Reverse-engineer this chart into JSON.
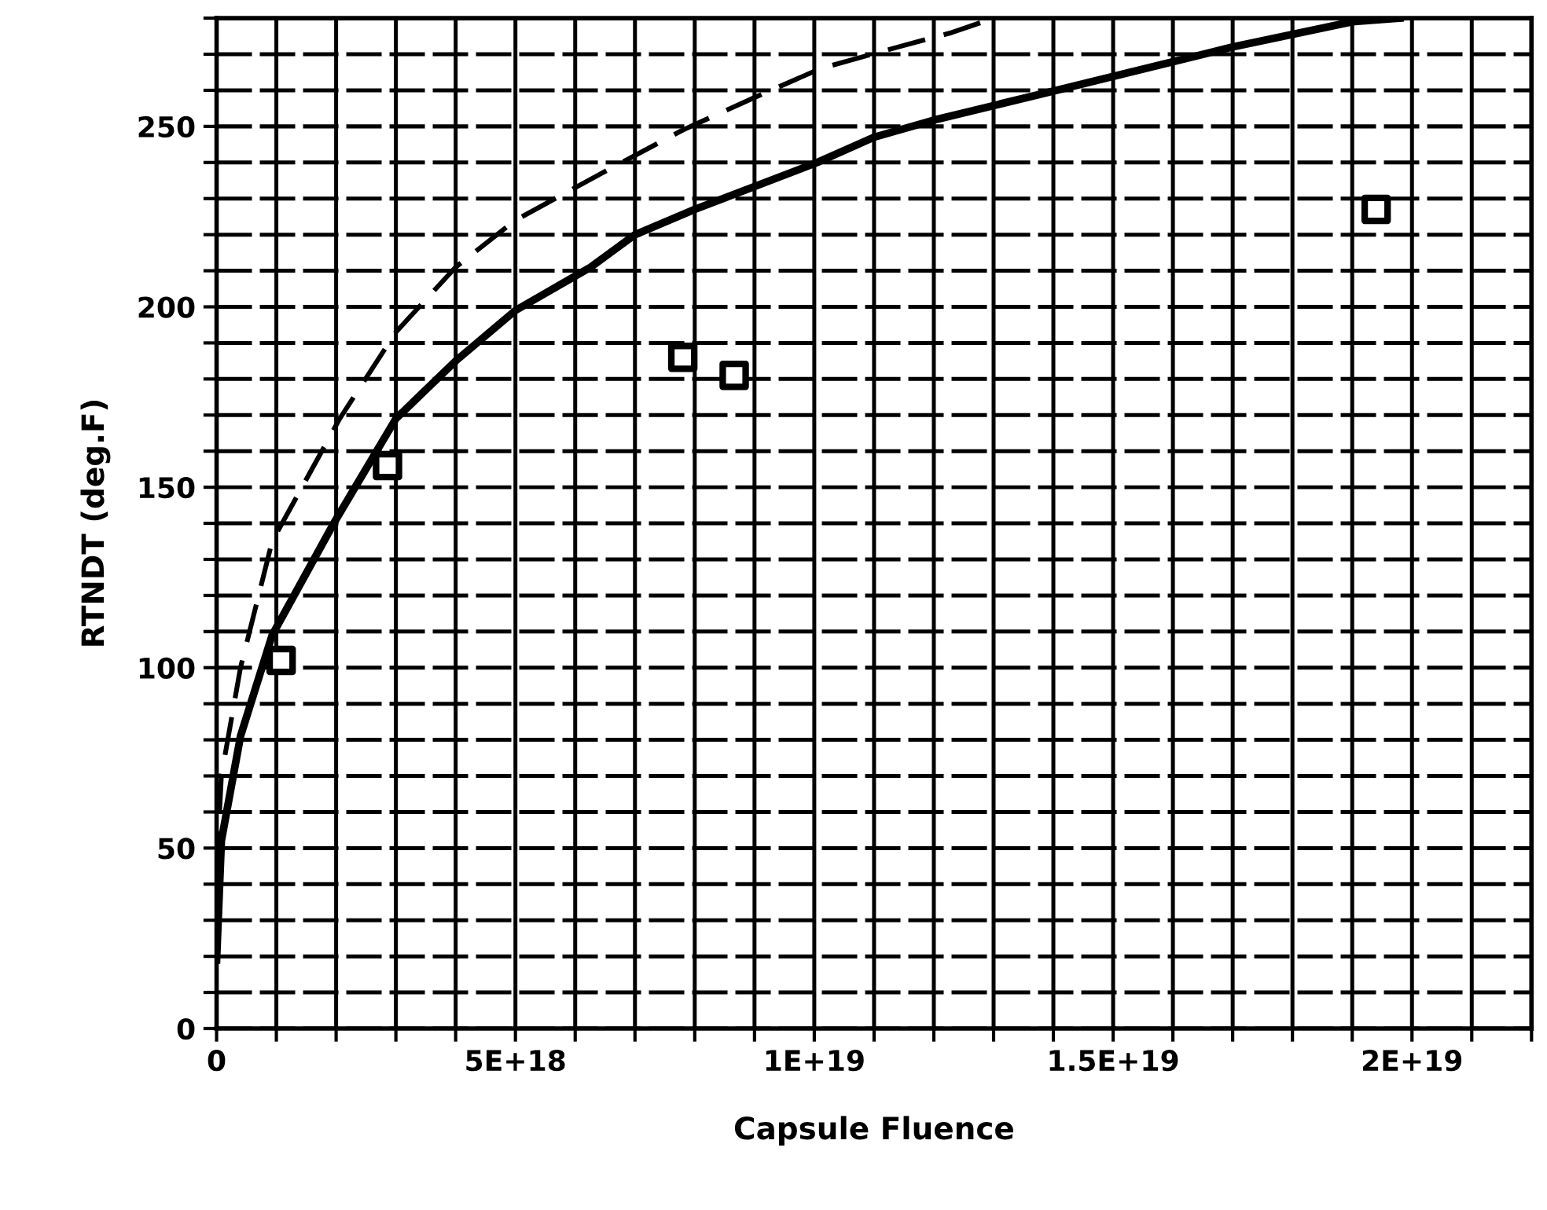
{
  "chart_data": {
    "type": "line",
    "xlabel": "Capsule Fluence",
    "ylabel": "RTNDT (deg.F)",
    "xlim": [
      0,
      2.2e+19
    ],
    "ylim": [
      0,
      280
    ],
    "xticks": [
      {
        "value": 0,
        "label": "0"
      },
      {
        "value": 1e+18,
        "label": null
      },
      {
        "value": 2e+18,
        "label": null
      },
      {
        "value": 3e+18,
        "label": null
      },
      {
        "value": 4e+18,
        "label": null
      },
      {
        "value": 5e+18,
        "label": "5E+18"
      },
      {
        "value": 6e+18,
        "label": null
      },
      {
        "value": 7e+18,
        "label": null
      },
      {
        "value": 8e+18,
        "label": null
      },
      {
        "value": 9e+18,
        "label": null
      },
      {
        "value": 1e+19,
        "label": "1E+19"
      },
      {
        "value": 1.1e+19,
        "label": null
      },
      {
        "value": 1.2e+19,
        "label": null
      },
      {
        "value": 1.3e+19,
        "label": null
      },
      {
        "value": 1.4e+19,
        "label": null
      },
      {
        "value": 1.5e+19,
        "label": "1.5E+19"
      },
      {
        "value": 1.6e+19,
        "label": null
      },
      {
        "value": 1.7e+19,
        "label": null
      },
      {
        "value": 1.8e+19,
        "label": null
      },
      {
        "value": 1.9e+19,
        "label": null
      },
      {
        "value": 2e+19,
        "label": "2E+19"
      },
      {
        "value": 2.1e+19,
        "label": null
      },
      {
        "value": 2.2e+19,
        "label": null
      }
    ],
    "yticks": [
      0,
      {
        "value": 10,
        "label": null
      },
      {
        "value": 20,
        "label": null
      },
      {
        "value": 30,
        "label": null
      },
      {
        "value": 40,
        "label": null
      },
      50,
      {
        "value": 60,
        "label": null
      },
      {
        "value": 70,
        "label": null
      },
      {
        "value": 80,
        "label": null
      },
      {
        "value": 90,
        "label": null
      },
      100,
      {
        "value": 110,
        "label": null
      },
      {
        "value": 120,
        "label": null
      },
      {
        "value": 130,
        "label": null
      },
      {
        "value": 140,
        "label": null
      },
      150,
      {
        "value": 160,
        "label": null
      },
      {
        "value": 170,
        "label": null
      },
      {
        "value": 180,
        "label": null
      },
      {
        "value": 190,
        "label": null
      },
      200,
      {
        "value": 210,
        "label": null
      },
      {
        "value": 220,
        "label": null
      },
      {
        "value": 230,
        "label": null
      },
      {
        "value": 240,
        "label": null
      },
      250,
      {
        "value": 260,
        "label": null
      },
      {
        "value": 270,
        "label": null
      },
      {
        "value": 280,
        "label": null
      }
    ],
    "grid": true,
    "series": [
      {
        "color": "#000000",
        "line_style": "solid",
        "x": [
          0,
          8e+16,
          4e+17,
          9.3e+17,
          1.96e+18,
          3e+18,
          4e+18,
          5e+18,
          6.26e+18,
          7e+18,
          8e+18,
          1.005e+19,
          1.1e+19,
          1.206e+19,
          1.405e+19,
          1.7e+19,
          1.9e+19,
          1.98e+19
        ],
        "values": [
          19,
          52,
          81,
          109,
          140,
          169,
          185,
          199,
          211,
          220,
          227,
          240,
          247,
          252,
          260,
          272,
          279,
          280
        ]
      },
      {
        "color": "#000000",
        "line_style": "dashed",
        "x": [
          0,
          8e+16,
          4e+17,
          9.3e+17,
          2.06e+18,
          3e+18,
          4e+18,
          5e+18,
          6.44e+18,
          7.8e+18,
          9e+18,
          1.01e+19,
          1.14e+19,
          1.23e+19,
          1.3e+19
        ],
        "values": [
          44,
          70,
          100,
          135,
          169,
          193,
          211,
          224,
          237,
          249,
          258,
          266,
          272,
          276,
          280
        ]
      },
      {
        "type": "scatter",
        "color": "#000000",
        "marker": "square",
        "x": [
          1.08e+18,
          2.86e+18,
          7.8e+18,
          8.66e+18,
          1.94e+19
        ],
        "values": [
          102,
          156,
          186,
          181,
          227
        ]
      }
    ]
  }
}
